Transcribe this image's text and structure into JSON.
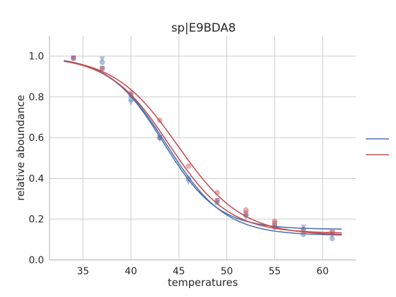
{
  "chart_data": {
    "type": "scatter",
    "title": "sp|E9BDA8",
    "xlabel": "temperatures",
    "ylabel": "relative aboundance",
    "xlim": [
      31.5,
      63.5
    ],
    "ylim": [
      0.0,
      1.1
    ],
    "xticks": [
      35,
      40,
      45,
      50,
      55,
      60
    ],
    "yticks": [
      0.0,
      0.2,
      0.4,
      0.6,
      0.8,
      1.0
    ],
    "xtick_labels": [
      "35",
      "40",
      "45",
      "50",
      "55",
      "60"
    ],
    "ytick_labels": [
      "0.0",
      "0.2",
      "0.4",
      "0.6",
      "0.8",
      "1.0"
    ],
    "grid": true,
    "legend": {
      "placement": "right",
      "entries": [
        {
          "label": "",
          "color": "#4c72b0"
        },
        {
          "label": "",
          "color": "#c44e52"
        }
      ]
    },
    "series": [
      {
        "color": "#4c72b0",
        "points": [
          {
            "x": 34,
            "y": 0.99,
            "marker": "circle"
          },
          {
            "x": 34,
            "y": 0.99,
            "marker": "triangle"
          },
          {
            "x": 37,
            "y": 0.985,
            "marker": "triangle"
          },
          {
            "x": 37,
            "y": 0.97,
            "marker": "circle"
          },
          {
            "x": 37,
            "y": 0.94,
            "marker": "square"
          },
          {
            "x": 40,
            "y": 0.81,
            "marker": "circle"
          },
          {
            "x": 40,
            "y": 0.79,
            "marker": "square"
          },
          {
            "x": 40,
            "y": 0.77,
            "marker": "triangle"
          },
          {
            "x": 43,
            "y": 0.6,
            "marker": "circle"
          },
          {
            "x": 43,
            "y": 0.59,
            "marker": "triangle"
          },
          {
            "x": 46,
            "y": 0.4,
            "marker": "circle"
          },
          {
            "x": 46,
            "y": 0.38,
            "marker": "triangle"
          },
          {
            "x": 49,
            "y": 0.29,
            "marker": "circle"
          },
          {
            "x": 49,
            "y": 0.28,
            "marker": "square"
          },
          {
            "x": 52,
            "y": 0.22,
            "marker": "circle"
          },
          {
            "x": 52,
            "y": 0.21,
            "marker": "triangle"
          },
          {
            "x": 55,
            "y": 0.17,
            "marker": "square"
          },
          {
            "x": 55,
            "y": 0.16,
            "marker": "circle"
          },
          {
            "x": 58,
            "y": 0.16,
            "marker": "triangle"
          },
          {
            "x": 58,
            "y": 0.125,
            "marker": "circle"
          },
          {
            "x": 61,
            "y": 0.12,
            "marker": "triangle"
          },
          {
            "x": 61,
            "y": 0.105,
            "marker": "circle"
          }
        ],
        "fits": [
          {
            "top": 1.0,
            "bottom": 0.15,
            "tm": 43.4,
            "slope": 0.35
          },
          {
            "top": 1.0,
            "bottom": 0.12,
            "tm": 43.8,
            "slope": 0.33
          }
        ]
      },
      {
        "color": "#c44e52",
        "points": [
          {
            "x": 34,
            "y": 0.99,
            "marker": "circle"
          },
          {
            "x": 37,
            "y": 0.94,
            "marker": "circle"
          },
          {
            "x": 40,
            "y": 0.82,
            "marker": "circle"
          },
          {
            "x": 43,
            "y": 0.685,
            "marker": "circle"
          },
          {
            "x": 43,
            "y": 0.6,
            "marker": "triangle"
          },
          {
            "x": 46,
            "y": 0.46,
            "marker": "circle"
          },
          {
            "x": 49,
            "y": 0.33,
            "marker": "circle"
          },
          {
            "x": 49,
            "y": 0.29,
            "marker": "triangle"
          },
          {
            "x": 52,
            "y": 0.245,
            "marker": "circle"
          },
          {
            "x": 52,
            "y": 0.23,
            "marker": "square"
          },
          {
            "x": 55,
            "y": 0.19,
            "marker": "circle"
          },
          {
            "x": 55,
            "y": 0.18,
            "marker": "square"
          },
          {
            "x": 58,
            "y": 0.15,
            "marker": "circle"
          },
          {
            "x": 58,
            "y": 0.14,
            "marker": "triangle"
          },
          {
            "x": 61,
            "y": 0.14,
            "marker": "circle"
          },
          {
            "x": 61,
            "y": 0.13,
            "marker": "triangle"
          }
        ],
        "fits": [
          {
            "top": 1.0,
            "bottom": 0.12,
            "tm": 44.9,
            "slope": 0.3
          },
          {
            "top": 1.0,
            "bottom": 0.13,
            "tm": 44.0,
            "slope": 0.32
          }
        ]
      }
    ]
  }
}
